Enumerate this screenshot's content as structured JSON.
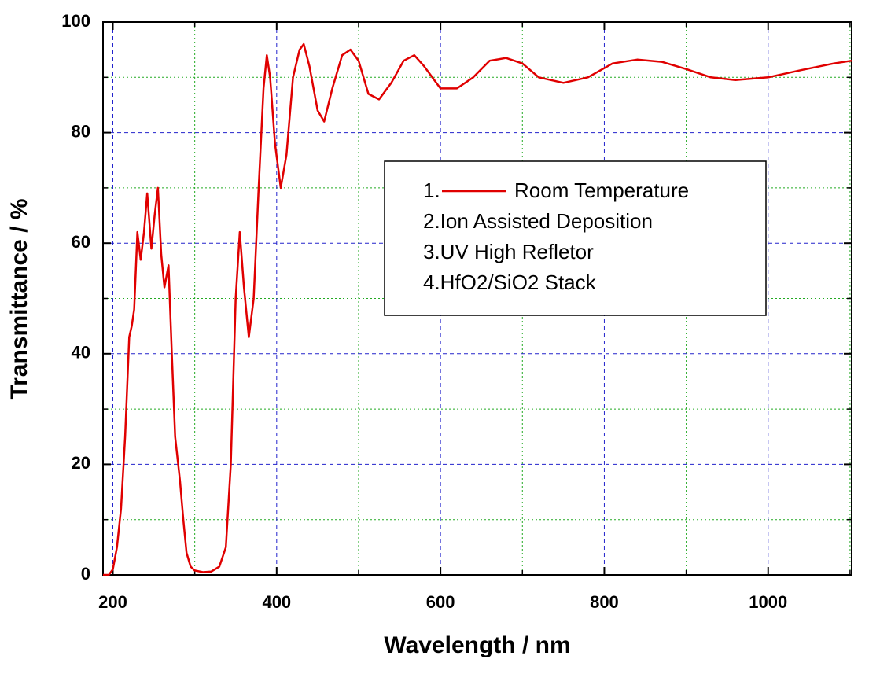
{
  "chart_data": {
    "type": "line",
    "x_label": "Wavelength / nm",
    "y_label": "Transmittance / %",
    "xlim": [
      188,
      1102
    ],
    "ylim": [
      0,
      100
    ],
    "xticks": [
      200,
      400,
      600,
      800,
      1000
    ],
    "yticks": [
      0,
      20,
      40,
      60,
      80,
      100
    ],
    "xminorticks": [
      300,
      500,
      700,
      900,
      1100
    ],
    "yminorticks": [
      10,
      30,
      50,
      70,
      90
    ],
    "grid": true,
    "legend_notes": [
      "1.",
      "2.Ion Assisted Deposition",
      "3.UV High Refletor",
      "4.HfO2/SiO2 Stack"
    ],
    "x": [
      188,
      195,
      200,
      205,
      210,
      215,
      220,
      223,
      226,
      230,
      234,
      238,
      242,
      247,
      251,
      255,
      259,
      263,
      268,
      272,
      276,
      282,
      286,
      290,
      295,
      300,
      310,
      320,
      330,
      338,
      344,
      350,
      355,
      360,
      366,
      372,
      378,
      384,
      388,
      392,
      398,
      405,
      412,
      420,
      428,
      433,
      440,
      450,
      458,
      468,
      480,
      490,
      500,
      512,
      525,
      540,
      555,
      568,
      580,
      600,
      620,
      640,
      660,
      680,
      700,
      720,
      750,
      780,
      810,
      840,
      870,
      900,
      930,
      960,
      1000,
      1040,
      1080,
      1102
    ],
    "series": [
      {
        "name": "Room Temperature",
        "color": "#e00000",
        "values": [
          0,
          0,
          1,
          5,
          12,
          25,
          43,
          45,
          48,
          62,
          57,
          62,
          69,
          59,
          65,
          70,
          58,
          52,
          56,
          40,
          25,
          17,
          10,
          4,
          1.5,
          0.8,
          0.5,
          0.6,
          1.5,
          5,
          20,
          50,
          62,
          52,
          43,
          50,
          70,
          88,
          94,
          90,
          78,
          70,
          76,
          90,
          95,
          96,
          92,
          84,
          82,
          88,
          94,
          95,
          93,
          87,
          86,
          89,
          93,
          94,
          92,
          88,
          88,
          90,
          93,
          93.5,
          92.5,
          90,
          89,
          90,
          92.5,
          93.2,
          92.8,
          91.5,
          90,
          89.5,
          90,
          91.3,
          92.5,
          93
        ]
      }
    ]
  }
}
